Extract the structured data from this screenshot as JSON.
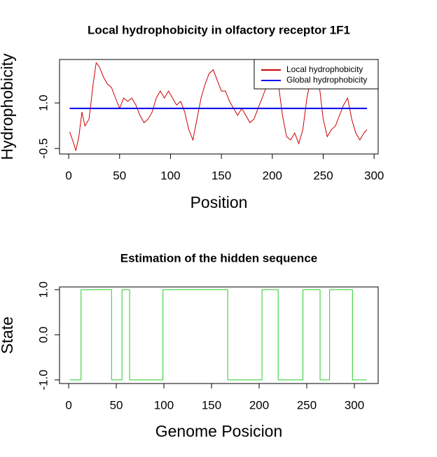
{
  "chart_data": [
    {
      "type": "line",
      "title": "Local hydrophobicity in olfactory receptor 1F1",
      "xlabel": "Position",
      "ylabel": "Hydrophobicity",
      "x": [
        1,
        5,
        7,
        10,
        13,
        16,
        20,
        24,
        27,
        30,
        34,
        38,
        42,
        46,
        50,
        54,
        58,
        62,
        66,
        70,
        74,
        78,
        82,
        86,
        90,
        94,
        98,
        102,
        106,
        110,
        114,
        118,
        122,
        126,
        130,
        134,
        138,
        142,
        146,
        150,
        154,
        158,
        162,
        166,
        170,
        174,
        178,
        182,
        186,
        190,
        194,
        198,
        202,
        206,
        210,
        214,
        218,
        222,
        226,
        230,
        234,
        238,
        242,
        246,
        250,
        254,
        258,
        262,
        266,
        270,
        274,
        278,
        282,
        286,
        290,
        293
      ],
      "series": [
        {
          "name": "Local hydrophobicity",
          "color": "#cc0000",
          "values": [
            0.05,
            -0.34,
            -0.57,
            -0.11,
            0.7,
            0.24,
            0.47,
            1.62,
            2.32,
            2.2,
            1.86,
            1.62,
            1.51,
            1.16,
            0.82,
            1.16,
            1.05,
            1.16,
            0.93,
            0.59,
            0.35,
            0.47,
            0.7,
            1.16,
            1.39,
            1.16,
            1.39,
            1.16,
            0.93,
            1.05,
            0.7,
            0.12,
            -0.22,
            0.47,
            1.16,
            1.62,
            1.97,
            2.09,
            1.74,
            1.39,
            1.39,
            1.05,
            0.82,
            0.59,
            0.82,
            0.59,
            0.35,
            0.47,
            0.82,
            1.16,
            1.51,
            1.74,
            1.86,
            1.62,
            0.59,
            -0.11,
            -0.22,
            0.01,
            -0.34,
            0.12,
            1.16,
            1.86,
            1.86,
            1.62,
            0.47,
            -0.11,
            0.12,
            0.24,
            0.59,
            0.93,
            1.16,
            0.47,
            0.01,
            -0.22,
            0.01,
            0.12
          ]
        },
        {
          "name": "Global hydrophobicity",
          "color": "#0000ee",
          "x": [
            1,
            293
          ],
          "values": [
            0.82,
            0.82
          ]
        }
      ],
      "xlim": [
        -9,
        304
      ],
      "xticks": [
        0,
        50,
        100,
        150,
        200,
        250,
        300
      ],
      "ylim": [
        -0.68,
        2.43
      ],
      "yticks": [
        -0.5,
        {
          "value": 1,
          "label": "1.0"
        }
      ],
      "legend": "top-right"
    },
    {
      "type": "step",
      "title": "Estimation of the hidden sequence",
      "xlabel": "Genome Posicion",
      "ylabel": "State",
      "x": [
        1,
        13,
        45,
        56,
        64,
        99,
        167,
        203,
        220,
        246,
        264,
        274,
        298,
        313
      ],
      "values": [
        -1,
        1,
        -1,
        1,
        -1,
        1,
        -1,
        1,
        -1,
        1,
        -1,
        1,
        -1,
        -1
      ],
      "color": "#22cc22",
      "xlim": [
        -9.6,
        325
      ],
      "xticks": [
        0,
        50,
        100,
        150,
        200,
        250,
        300
      ],
      "ylim": [
        -1.08,
        1.06
      ],
      "yticks": [
        {
          "value": -1,
          "label": "-1.0"
        },
        {
          "value": 0,
          "label": "0.0"
        },
        {
          "value": 1,
          "label": "1.0"
        }
      ]
    }
  ]
}
